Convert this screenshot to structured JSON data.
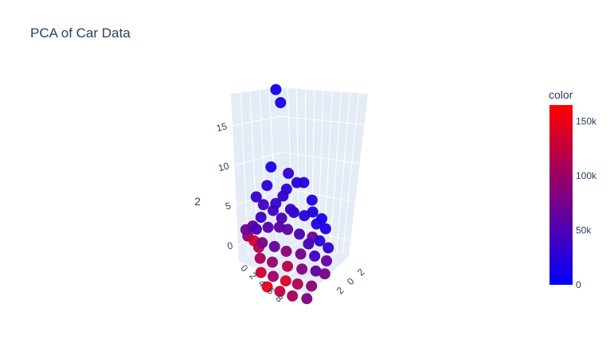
{
  "chart_data": {
    "type": "scatter",
    "title": "PCA of Car Data",
    "z_axis_label": "2",
    "z_ticks": [
      "0",
      "5",
      "10",
      "15"
    ],
    "x_ticks": [
      "0",
      "2",
      "4",
      "6",
      "8"
    ],
    "y_ticks": [
      "2",
      "0",
      "2"
    ],
    "zlim": [
      -2,
      19
    ],
    "xlim": [
      -1,
      8
    ],
    "ylim": [
      -3,
      3
    ],
    "colorbar": {
      "title": "color",
      "ticks": [
        {
          "label": "150k",
          "value": 150000
        },
        {
          "label": "100k",
          "value": 100000
        },
        {
          "label": "50k",
          "value": 50000
        },
        {
          "label": "0",
          "value": 0
        }
      ],
      "range": [
        0,
        165000
      ],
      "colors": [
        "#0000ff",
        "#ff0000"
      ]
    },
    "points_note_values_are_pc_coordinates": "",
    "points": [
      {
        "x": 0.0,
        "y": 0.0,
        "z": 18.0,
        "c": 12000
      },
      {
        "x": 0.5,
        "y": 0.2,
        "z": 16.8,
        "c": 15000
      },
      {
        "x": 1.0,
        "y": -0.8,
        "z": 9.6,
        "c": 20000
      },
      {
        "x": 1.5,
        "y": 0.4,
        "z": 9.0,
        "c": 30000
      },
      {
        "x": 2.0,
        "y": 0.9,
        "z": 8.2,
        "c": 25000
      },
      {
        "x": 1.2,
        "y": -1.2,
        "z": 7.6,
        "c": 28000
      },
      {
        "x": 1.8,
        "y": 1.5,
        "z": 7.9,
        "c": 22000
      },
      {
        "x": 1.0,
        "y": -2.0,
        "z": 6.2,
        "c": 35000
      },
      {
        "x": 2.2,
        "y": 2.0,
        "z": 6.0,
        "c": 18000
      },
      {
        "x": 1.5,
        "y": -1.6,
        "z": 5.6,
        "c": 40000
      },
      {
        "x": 2.0,
        "y": -1.0,
        "z": 5.2,
        "c": 42000
      },
      {
        "x": 2.5,
        "y": -0.5,
        "z": 4.6,
        "c": 50000
      },
      {
        "x": 1.8,
        "y": -1.9,
        "z": 4.4,
        "c": 38000
      },
      {
        "x": 2.4,
        "y": 0.5,
        "z": 5.0,
        "c": 30000
      },
      {
        "x": 2.8,
        "y": 1.2,
        "z": 4.8,
        "c": 26000
      },
      {
        "x": 3.0,
        "y": 1.8,
        "z": 5.3,
        "c": 20000
      },
      {
        "x": 3.3,
        "y": 2.4,
        "z": 4.6,
        "c": 15000
      },
      {
        "x": 2.6,
        "y": -1.6,
        "z": 3.8,
        "c": 55000
      },
      {
        "x": 2.2,
        "y": -2.4,
        "z": 3.4,
        "c": 45000
      },
      {
        "x": 3.0,
        "y": -0.2,
        "z": 3.6,
        "c": 60000
      },
      {
        "x": 3.4,
        "y": 0.6,
        "z": 3.2,
        "c": 48000
      },
      {
        "x": 3.8,
        "y": 1.5,
        "z": 3.0,
        "c": 70000
      },
      {
        "x": 4.0,
        "y": 2.0,
        "z": 2.6,
        "c": 25000
      },
      {
        "x": 3.0,
        "y": -2.2,
        "z": 2.4,
        "c": 80000
      },
      {
        "x": 3.5,
        "y": -1.4,
        "z": 2.2,
        "c": 65000
      },
      {
        "x": 3.9,
        "y": -0.6,
        "z": 1.8,
        "c": 90000
      },
      {
        "x": 4.3,
        "y": 0.4,
        "z": 1.6,
        "c": 75000
      },
      {
        "x": 4.6,
        "y": 1.4,
        "z": 1.4,
        "c": 40000
      },
      {
        "x": 3.7,
        "y": -2.6,
        "z": 1.2,
        "c": 110000
      },
      {
        "x": 4.2,
        "y": -1.8,
        "z": 1.0,
        "c": 95000
      },
      {
        "x": 4.8,
        "y": -0.8,
        "z": 0.8,
        "c": 120000
      },
      {
        "x": 5.2,
        "y": 0.2,
        "z": 0.6,
        "c": 85000
      },
      {
        "x": 5.5,
        "y": 1.2,
        "z": 0.4,
        "c": 60000
      },
      {
        "x": 4.5,
        "y": -2.8,
        "z": 0.2,
        "c": 130000
      },
      {
        "x": 5.0,
        "y": -2.0,
        "z": 0.0,
        "c": 100000
      },
      {
        "x": 5.6,
        "y": -1.2,
        "z": -0.2,
        "c": 140000
      },
      {
        "x": 6.0,
        "y": -0.4,
        "z": -0.4,
        "c": 115000
      },
      {
        "x": 6.3,
        "y": 0.6,
        "z": -0.6,
        "c": 90000
      },
      {
        "x": 5.4,
        "y": -2.6,
        "z": -0.8,
        "c": 150000
      },
      {
        "x": 6.0,
        "y": -1.8,
        "z": -1.0,
        "c": 125000
      },
      {
        "x": 6.6,
        "y": -1.0,
        "z": -1.2,
        "c": 105000
      },
      {
        "x": 7.0,
        "y": 0.0,
        "z": -1.4,
        "c": 80000
      },
      {
        "x": 2.0,
        "y": -0.2,
        "z": 6.8,
        "c": 32000
      },
      {
        "x": 2.4,
        "y": -0.9,
        "z": 6.4,
        "c": 36000
      },
      {
        "x": 1.6,
        "y": 0.2,
        "z": 7.2,
        "c": 27000
      },
      {
        "x": 2.9,
        "y": 0.1,
        "z": 5.9,
        "c": 34000
      },
      {
        "x": 3.2,
        "y": -0.9,
        "z": 4.2,
        "c": 58000
      },
      {
        "x": 1.3,
        "y": -2.4,
        "z": 3.0,
        "c": 62000
      },
      {
        "x": 0.8,
        "y": -2.8,
        "z": 2.2,
        "c": 72000
      },
      {
        "x": 0.6,
        "y": -2.6,
        "z": 1.2,
        "c": 98000
      },
      {
        "x": 0.9,
        "y": -2.2,
        "z": 0.8,
        "c": 135000
      },
      {
        "x": 1.4,
        "y": -2.0,
        "z": 0.4,
        "c": 118000
      },
      {
        "x": 2.6,
        "y": 2.2,
        "z": 3.4,
        "c": 22000
      },
      {
        "x": 3.6,
        "y": 2.6,
        "z": 3.6,
        "c": 18000
      },
      {
        "x": 4.2,
        "y": 2.6,
        "z": 1.8,
        "c": 30000
      },
      {
        "x": 5.0,
        "y": 2.2,
        "z": 1.0,
        "c": 65000
      },
      {
        "x": 4.4,
        "y": 1.0,
        "z": 2.8,
        "c": 45000
      },
      {
        "x": 5.8,
        "y": 1.8,
        "z": 0.2,
        "c": 78000
      }
    ]
  }
}
